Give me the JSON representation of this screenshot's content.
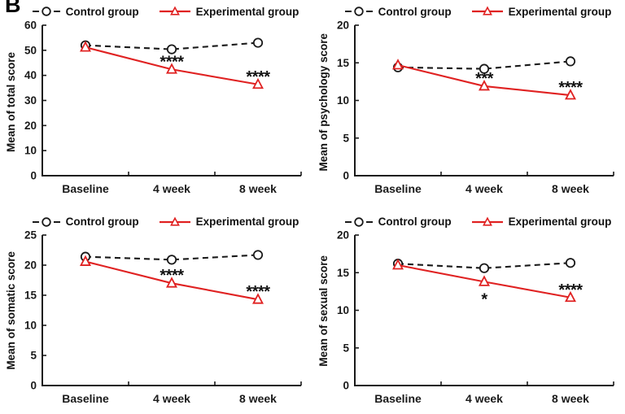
{
  "figure_label": "B",
  "colors": {
    "control": "#1a1a1a",
    "experimental": "#e02222",
    "axis": "#1a1a1a",
    "marker_fill": "#ffffff",
    "annotation": "#111111"
  },
  "legend": {
    "control_label": "Control group",
    "experimental_label": "Experimental group",
    "position": "top"
  },
  "chart_data": [
    {
      "type": "line",
      "title": "",
      "xlabel": "",
      "ylabel": "Mean of total score",
      "ylim": [
        0,
        60
      ],
      "ytick_step": 10,
      "grid": false,
      "categories": [
        "Baseline",
        "4 week",
        "8 week"
      ],
      "series": [
        {
          "name": "Control group",
          "role": "control",
          "marker": "circle",
          "line": "dashed",
          "values": [
            52.0,
            50.4,
            53.0
          ]
        },
        {
          "name": "Experimental group",
          "role": "experimental",
          "marker": "triangle",
          "line": "solid",
          "values": [
            51.2,
            42.4,
            36.4
          ]
        }
      ],
      "annotations": [
        {
          "series_index": 1,
          "category_index": 1,
          "text": "****",
          "placement": "above"
        },
        {
          "series_index": 1,
          "category_index": 2,
          "text": "****",
          "placement": "above"
        }
      ]
    },
    {
      "type": "line",
      "title": "",
      "xlabel": "",
      "ylabel": "Mean of psychology score",
      "ylim": [
        0,
        20
      ],
      "ytick_step": 5,
      "grid": false,
      "categories": [
        "Baseline",
        "4 week",
        "8 week"
      ],
      "series": [
        {
          "name": "Control group",
          "role": "control",
          "marker": "circle",
          "line": "dashed",
          "values": [
            14.4,
            14.2,
            15.2
          ]
        },
        {
          "name": "Experimental group",
          "role": "experimental",
          "marker": "triangle",
          "line": "solid",
          "values": [
            14.7,
            11.9,
            10.7
          ]
        }
      ],
      "annotations": [
        {
          "series_index": 1,
          "category_index": 1,
          "text": "***",
          "placement": "above"
        },
        {
          "series_index": 1,
          "category_index": 2,
          "text": "****",
          "placement": "above"
        }
      ]
    },
    {
      "type": "line",
      "title": "",
      "xlabel": "",
      "ylabel": "Mean of somatic score",
      "ylim": [
        0,
        25
      ],
      "ytick_step": 5,
      "grid": false,
      "categories": [
        "Baseline",
        "4 week",
        "8 week"
      ],
      "series": [
        {
          "name": "Control group",
          "role": "control",
          "marker": "circle",
          "line": "dashed",
          "values": [
            21.4,
            20.9,
            21.7
          ]
        },
        {
          "name": "Experimental group",
          "role": "experimental",
          "marker": "triangle",
          "line": "solid",
          "values": [
            20.6,
            17.0,
            14.3
          ]
        }
      ],
      "annotations": [
        {
          "series_index": 1,
          "category_index": 1,
          "text": "****",
          "placement": "above"
        },
        {
          "series_index": 1,
          "category_index": 2,
          "text": "****",
          "placement": "above"
        }
      ]
    },
    {
      "type": "line",
      "title": "",
      "xlabel": "",
      "ylabel": "Mean of sexual score",
      "ylim": [
        0,
        20
      ],
      "ytick_step": 5,
      "grid": false,
      "categories": [
        "Baseline",
        "4 week",
        "8 week"
      ],
      "series": [
        {
          "name": "Control group",
          "role": "control",
          "marker": "circle",
          "line": "dashed",
          "values": [
            16.2,
            15.6,
            16.3
          ]
        },
        {
          "name": "Experimental group",
          "role": "experimental",
          "marker": "triangle",
          "line": "solid",
          "values": [
            16.0,
            13.8,
            11.7
          ]
        }
      ],
      "annotations": [
        {
          "series_index": 1,
          "category_index": 1,
          "text": "*",
          "placement": "below"
        },
        {
          "series_index": 1,
          "category_index": 2,
          "text": "****",
          "placement": "above"
        }
      ]
    }
  ]
}
